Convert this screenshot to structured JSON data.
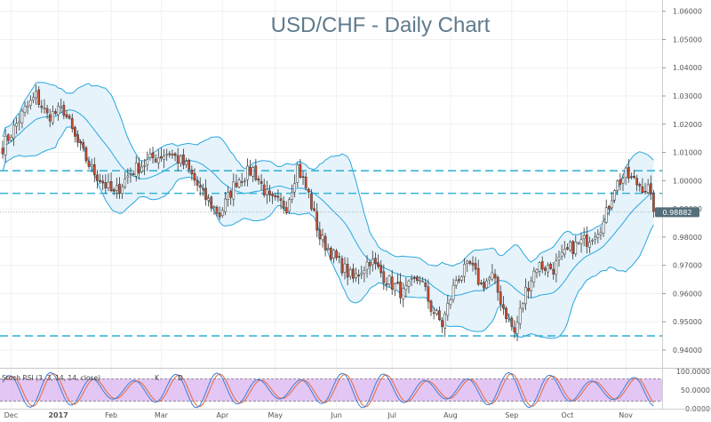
{
  "chart_data": {
    "type": "candlestick",
    "title": "USD/CHF - Daily Chart",
    "last_price": "0.98882",
    "y_ticks": [
      "1.06000",
      "1.05000",
      "1.04000",
      "1.03000",
      "1.02000",
      "1.01000",
      "1.00000",
      "0.99000",
      "0.98000",
      "0.97000",
      "0.96000",
      "0.95000",
      "0.94000"
    ],
    "y_range": [
      0.934,
      1.064
    ],
    "x_labels": [
      {
        "label": "Dec",
        "index": 3
      },
      {
        "label": "2017",
        "index": 20
      },
      {
        "label": "Feb",
        "index": 39
      },
      {
        "label": "Mar",
        "index": 57
      },
      {
        "label": "Apr",
        "index": 79
      },
      {
        "label": "May",
        "index": 98
      },
      {
        "label": "Jun",
        "index": 120
      },
      {
        "label": "Jul",
        "index": 140
      },
      {
        "label": "Aug",
        "index": 161
      },
      {
        "label": "Sep",
        "index": 183
      },
      {
        "label": "Oct",
        "index": 203
      },
      {
        "label": "Nov",
        "index": 224
      }
    ],
    "horizontal_levels": [
      1.0035,
      0.9955,
      0.945
    ],
    "close_keypoints": [
      [
        0,
        1.012
      ],
      [
        8,
        1.025
      ],
      [
        12,
        1.03
      ],
      [
        16,
        1.023
      ],
      [
        22,
        1.025
      ],
      [
        26,
        1.015
      ],
      [
        32,
        1.004
      ],
      [
        40,
        0.995
      ],
      [
        46,
        1.003
      ],
      [
        54,
        1.008
      ],
      [
        60,
        1.01
      ],
      [
        66,
        1.005
      ],
      [
        72,
        0.995
      ],
      [
        78,
        0.988
      ],
      [
        84,
        1.0
      ],
      [
        90,
        1.004
      ],
      [
        96,
        0.993
      ],
      [
        102,
        0.991
      ],
      [
        106,
        1.005
      ],
      [
        110,
        0.995
      ],
      [
        114,
        0.98
      ],
      [
        120,
        0.972
      ],
      [
        126,
        0.965
      ],
      [
        132,
        0.972
      ],
      [
        138,
        0.965
      ],
      [
        144,
        0.96
      ],
      [
        150,
        0.966
      ],
      [
        154,
        0.955
      ],
      [
        158,
        0.949
      ],
      [
        163,
        0.965
      ],
      [
        168,
        0.97
      ],
      [
        172,
        0.963
      ],
      [
        176,
        0.966
      ],
      [
        180,
        0.955
      ],
      [
        184,
        0.946
      ],
      [
        188,
        0.961
      ],
      [
        192,
        0.97
      ],
      [
        198,
        0.969
      ],
      [
        204,
        0.976
      ],
      [
        210,
        0.979
      ],
      [
        216,
        0.985
      ],
      [
        220,
        0.998
      ],
      [
        224,
        1.002
      ],
      [
        228,
        0.999
      ],
      [
        232,
        0.997
      ],
      [
        234,
        0.989
      ]
    ],
    "oscillator": {
      "label": "Stoch RSI (3, 3, 14, 14, close)",
      "legend_k": "K",
      "legend_d": "D",
      "upper_level": 80,
      "lower_level": 20,
      "y_ticks": [
        "100.0000",
        "50.0000",
        "0.0000"
      ],
      "range": [
        0,
        100
      ]
    },
    "colors": {
      "up_candle": "#ffffff",
      "down_candle": "#d0492a",
      "band_line": "#29a7de",
      "band_fill": "#e6f3fb",
      "level_line": "#39b5d6",
      "osc_fill": "#d9b3f0",
      "k_line": "#3c7fd8",
      "d_line": "#e46a3a",
      "title": "#5f7a8e",
      "badge": "#546e7a"
    }
  }
}
